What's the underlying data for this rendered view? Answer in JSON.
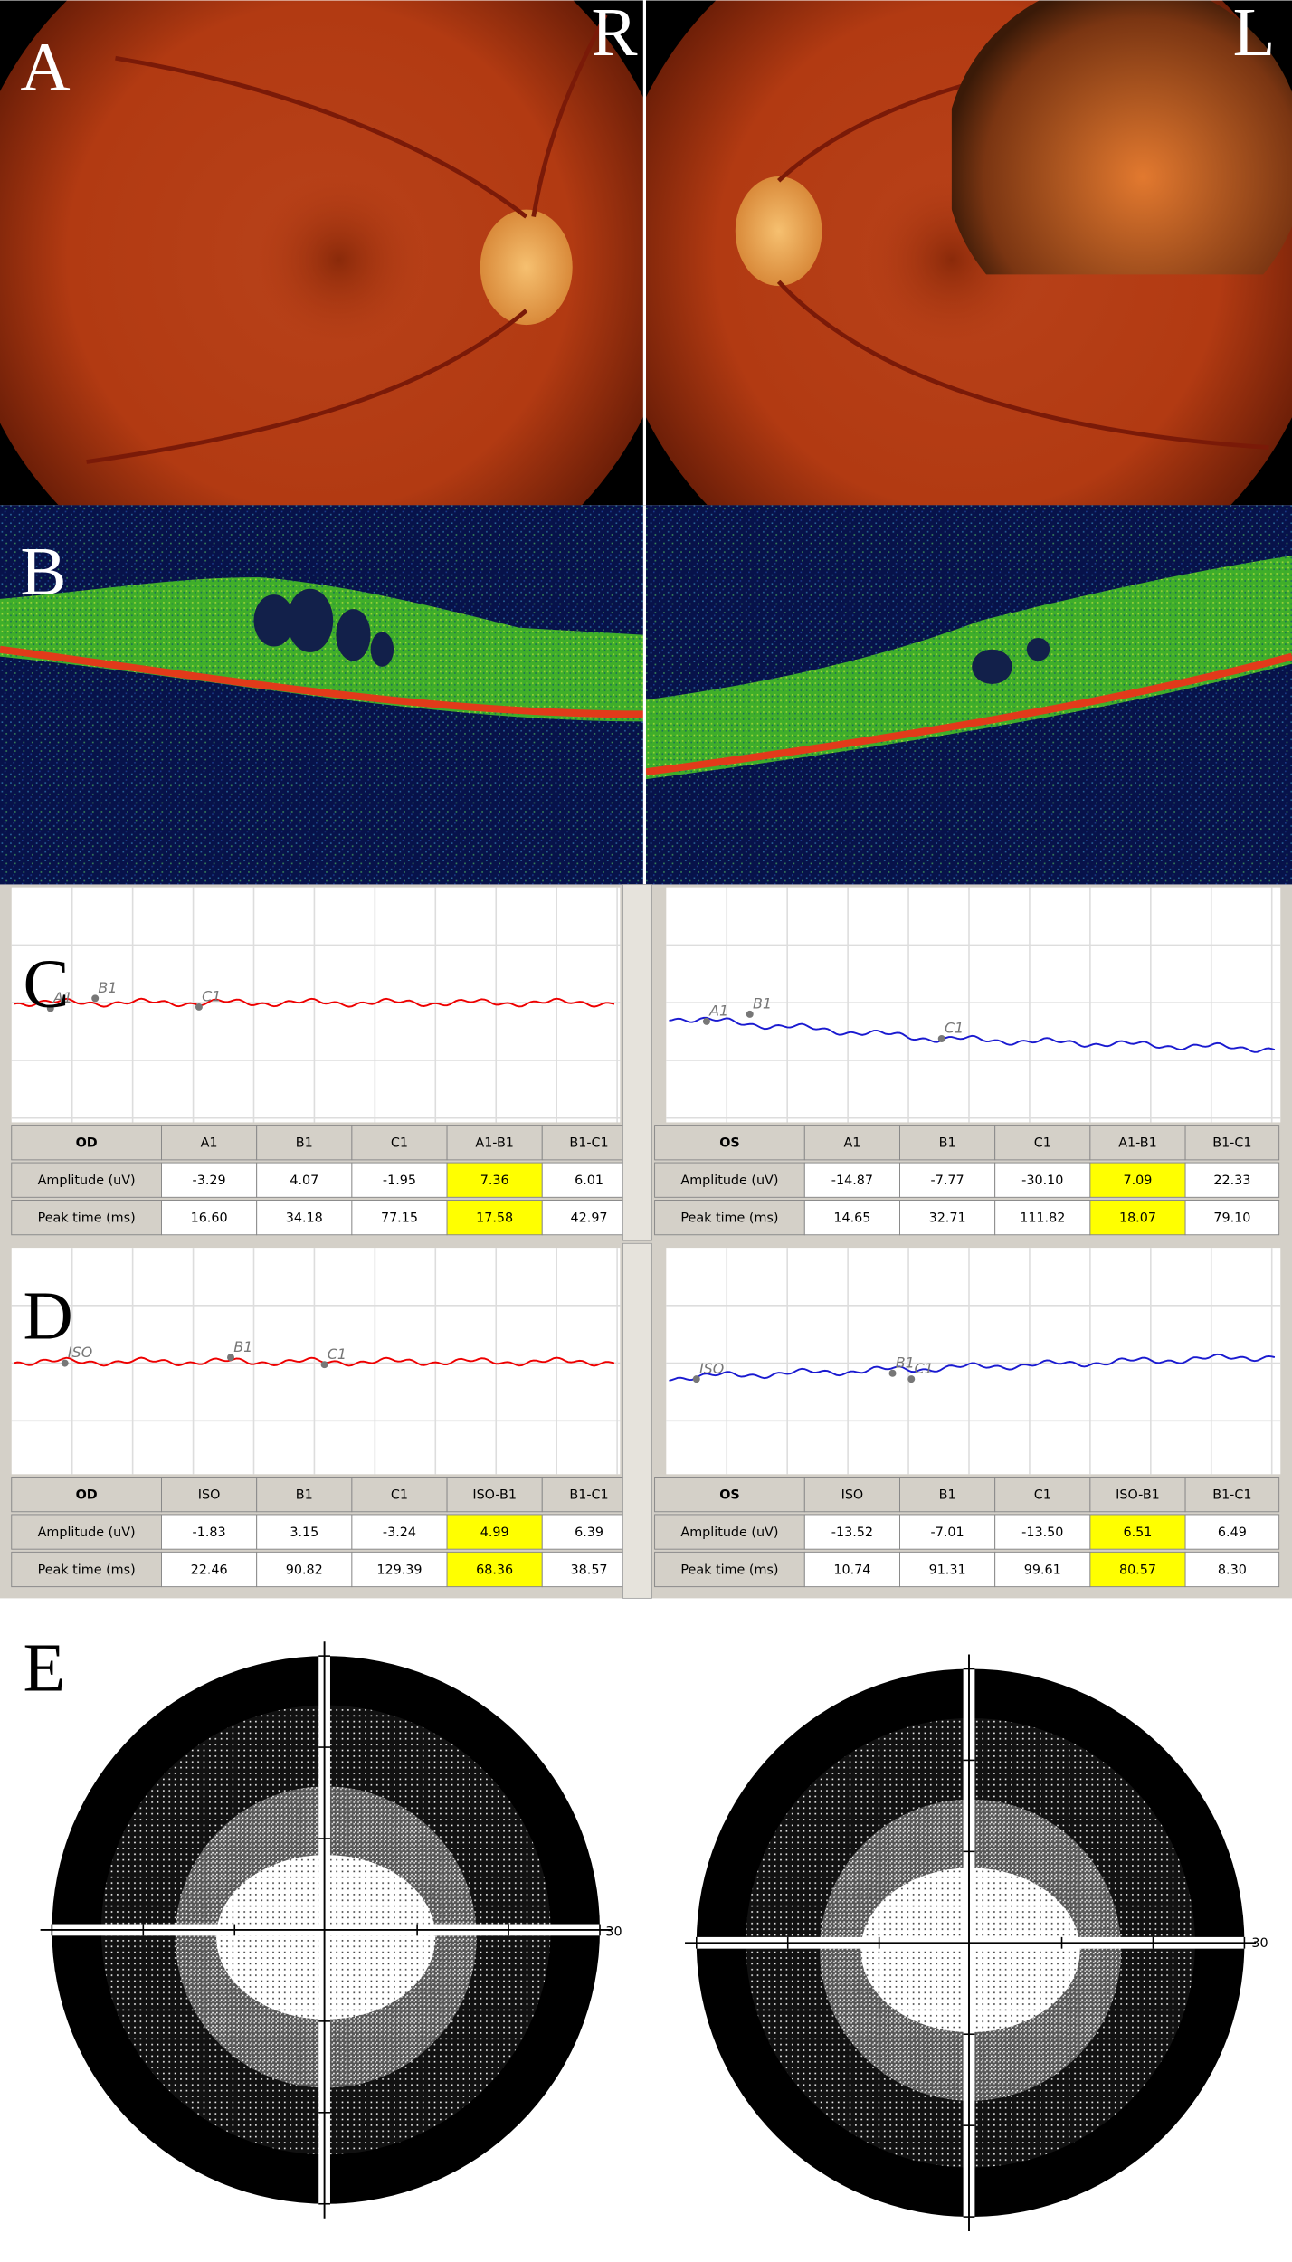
{
  "panels": [
    {
      "letter": "A",
      "right_eye": "R",
      "left_eye": "L"
    },
    {
      "letter": "B"
    },
    {
      "letter": "C",
      "od_markers": [
        "A1",
        "B1",
        "C1"
      ],
      "os_markers": [
        "A1",
        "B1",
        "C1"
      ],
      "tables": [
        {
          "header": [
            "OD",
            "A1",
            "B1",
            "C1",
            "A1-B1",
            "B1-C1"
          ],
          "rows": [
            [
              "Amplitude (uV)",
              "-3.29",
              "4.07",
              "-1.95",
              "7.36",
              "6.01"
            ],
            [
              "Peak time (ms)",
              "16.60",
              "34.18",
              "77.15",
              "17.58",
              "42.97"
            ]
          ]
        },
        {
          "header": [
            "OS",
            "A1",
            "B1",
            "C1",
            "A1-B1",
            "B1-C1"
          ],
          "rows": [
            [
              "Amplitude (uV)",
              "-14.87",
              "-7.77",
              "-30.10",
              "7.09",
              "22.33"
            ],
            [
              "Peak time (ms)",
              "14.65",
              "32.71",
              "111.82",
              "18.07",
              "79.10"
            ]
          ]
        }
      ]
    },
    {
      "letter": "D",
      "od_markers": [
        "ISO",
        "B1",
        "C1"
      ],
      "os_markers": [
        "ISO",
        "B1",
        "C1"
      ],
      "tables": [
        {
          "header": [
            "OD",
            "ISO",
            "B1",
            "C1",
            "ISO-B1",
            "B1-C1"
          ],
          "rows": [
            [
              "Amplitude (uV)",
              "-1.83",
              "3.15",
              "-3.24",
              "4.99",
              "6.39"
            ],
            [
              "Peak time (ms)",
              "22.46",
              "90.82",
              "129.39",
              "68.36",
              "38.57"
            ]
          ]
        },
        {
          "header": [
            "OS",
            "ISO",
            "B1",
            "C1",
            "ISO-B1",
            "B1-C1"
          ],
          "rows": [
            [
              "Amplitude (uV)",
              "-13.52",
              "-7.01",
              "-13.50",
              "6.51",
              "6.49"
            ],
            [
              "Peak time (ms)",
              "10.74",
              "91.31",
              "99.61",
              "80.57",
              "8.30"
            ]
          ]
        }
      ]
    },
    {
      "letter": "E",
      "od_scale": "30",
      "os_scale": "30"
    }
  ]
}
